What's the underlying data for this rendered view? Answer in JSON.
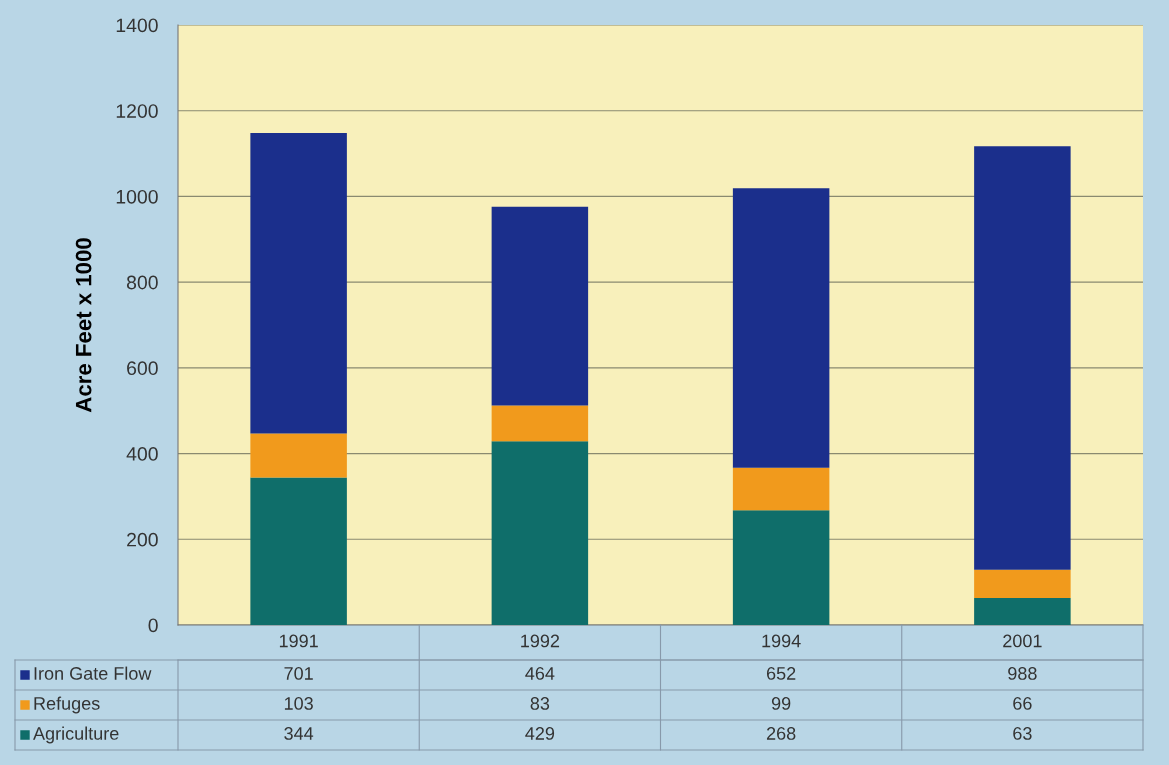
{
  "chart_data": {
    "type": "bar",
    "stacked": true,
    "ylabel": "Acre Feet x 1000",
    "categories": [
      "1991",
      "1992",
      "1994",
      "2001"
    ],
    "series": [
      {
        "name": "Agriculture",
        "color": "#0f6e6a",
        "values": [
          344,
          429,
          268,
          63
        ]
      },
      {
        "name": "Refuges",
        "color": "#f19a1c",
        "values": [
          103,
          83,
          99,
          66
        ]
      },
      {
        "name": "Iron Gate Flow",
        "color": "#1b2f8c",
        "values": [
          701,
          464,
          652,
          988
        ]
      }
    ],
    "ylim": [
      0,
      1400
    ],
    "yticks": [
      0,
      200,
      400,
      600,
      800,
      1000,
      1200,
      1400
    ],
    "grid": "y",
    "legend": "bottom",
    "data_labels": true
  }
}
